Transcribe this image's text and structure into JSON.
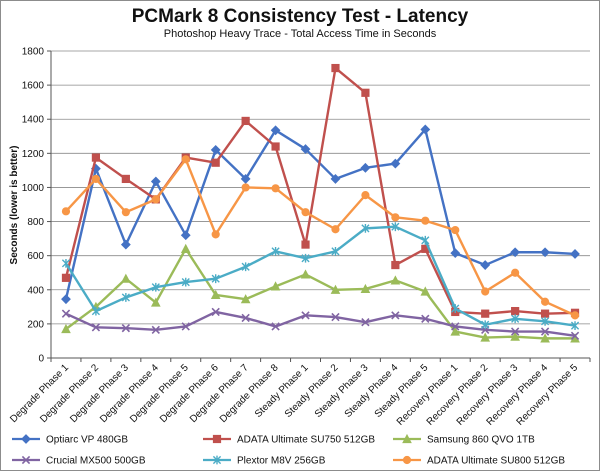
{
  "chart_data": {
    "type": "line",
    "title": "PCMark 8 Consistency Test - Latency",
    "subtitle": "Photoshop Heavy Trace - Total Access Time in Seconds",
    "ylabel": "Seconds (lower is better)",
    "xlabel": "",
    "ylim": [
      0,
      1800
    ],
    "ytick_step": 200,
    "grid": true,
    "legend_position": "bottom",
    "categories": [
      "Degrade Phase 1",
      "Degrade Phase 2",
      "Degrade Phase 3",
      "Degrade Phase 4",
      "Degrade Phase 5",
      "Degrade Phase 6",
      "Degrade Phase 7",
      "Degrade Phase 8",
      "Steady Phase 1",
      "Steady Phase 2",
      "Steady Phase 3",
      "Steady Phase 4",
      "Steady Phase 5",
      "Recovery Phase 1",
      "Recovery Phase 2",
      "Recovery Phase 3",
      "Recovery Phase 4",
      "Recovery Phase 5"
    ],
    "series": [
      {
        "name": "Optiarc VP 480GB",
        "color": "#4472c4",
        "marker": "diamond",
        "values": [
          345,
          1110,
          665,
          1035,
          720,
          1220,
          1050,
          1335,
          1225,
          1050,
          1115,
          1140,
          1340,
          615,
          545,
          620,
          620,
          610
        ]
      },
      {
        "name": "ADATA Ultimate SU750 512GB",
        "color": "#c0504d",
        "marker": "square",
        "values": [
          470,
          1175,
          1050,
          930,
          1175,
          1145,
          1390,
          1240,
          665,
          1700,
          1555,
          545,
          640,
          270,
          260,
          275,
          260,
          265
        ]
      },
      {
        "name": "Samsung 860 QVO 1TB",
        "color": "#9bbb59",
        "marker": "triangle",
        "values": [
          170,
          300,
          465,
          325,
          640,
          370,
          345,
          420,
          490,
          400,
          405,
          455,
          390,
          155,
          120,
          125,
          115,
          115
        ]
      },
      {
        "name": "Crucial MX500 500GB",
        "color": "#8064a2",
        "marker": "x",
        "values": [
          260,
          180,
          175,
          165,
          185,
          270,
          235,
          185,
          250,
          240,
          210,
          250,
          230,
          185,
          165,
          155,
          155,
          130
        ]
      },
      {
        "name": "Plextor M8V 256GB",
        "color": "#4bacc6",
        "marker": "star",
        "values": [
          555,
          275,
          355,
          415,
          445,
          465,
          535,
          625,
          585,
          625,
          760,
          770,
          690,
          290,
          195,
          230,
          215,
          190
        ]
      },
      {
        "name": "ADATA Ultimate SU800 512GB",
        "color": "#f79646",
        "marker": "circle",
        "values": [
          860,
          1050,
          855,
          930,
          1165,
          725,
          1000,
          995,
          855,
          755,
          955,
          825,
          805,
          750,
          390,
          500,
          330,
          250
        ]
      }
    ]
  }
}
